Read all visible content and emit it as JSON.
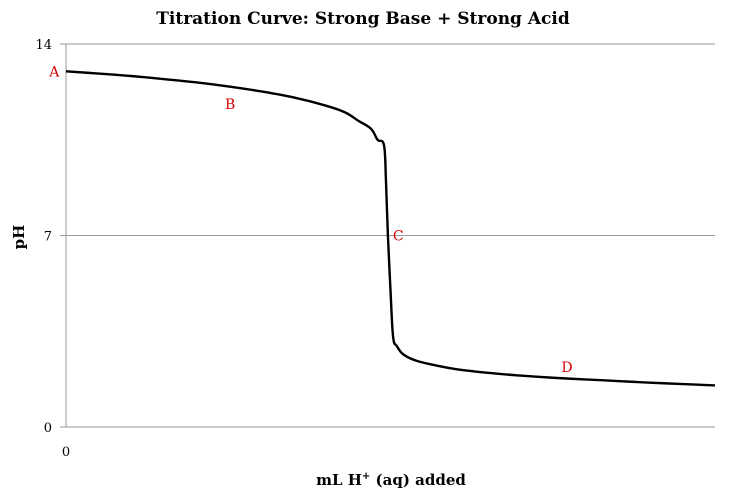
{
  "chart_data": {
    "type": "line",
    "title": "Titration Curve:  Strong Base + Strong Acid",
    "xlabel": "mL H",
    "xlabel_superscript": "+",
    "xlabel_suffix": " (aq) added",
    "ylabel": "pH",
    "xlim": [
      0,
      100
    ],
    "ylim": [
      0,
      14
    ],
    "x_ticks": [
      {
        "value": 0,
        "label": "0"
      }
    ],
    "y_ticks": [
      {
        "value": 0,
        "label": "0"
      },
      {
        "value": 7,
        "label": "7"
      },
      {
        "value": 14,
        "label": "14"
      }
    ],
    "grid": "horizontal",
    "series": [
      {
        "color": "#000000",
        "x": [
          0,
          5,
          10,
          15,
          20,
          25,
          30,
          35,
          40,
          43,
          45,
          47,
          48,
          49,
          49.3,
          49.6,
          50,
          50.4,
          51,
          52,
          54,
          57,
          60,
          65,
          70,
          75,
          80,
          85,
          90,
          95,
          100
        ],
        "y": [
          13.0,
          12.92,
          12.83,
          12.72,
          12.6,
          12.45,
          12.27,
          12.05,
          11.75,
          11.5,
          11.2,
          10.9,
          10.5,
          10.3,
          9.0,
          7.0,
          5.0,
          3.3,
          2.95,
          2.65,
          2.42,
          2.25,
          2.12,
          1.98,
          1.88,
          1.8,
          1.74,
          1.68,
          1.62,
          1.57,
          1.52
        ]
      }
    ],
    "annotations": [
      {
        "text": "A",
        "x": -1.8,
        "y": 13.0,
        "color": "#d40000"
      },
      {
        "text": "B",
        "x": 25.3,
        "y": 11.8,
        "color": "#d40000"
      },
      {
        "text": "C",
        "x": 51.2,
        "y": 7.0,
        "color": "#d40000"
      },
      {
        "text": "D",
        "x": 77.2,
        "y": 2.2,
        "color": "#d40000"
      }
    ]
  }
}
